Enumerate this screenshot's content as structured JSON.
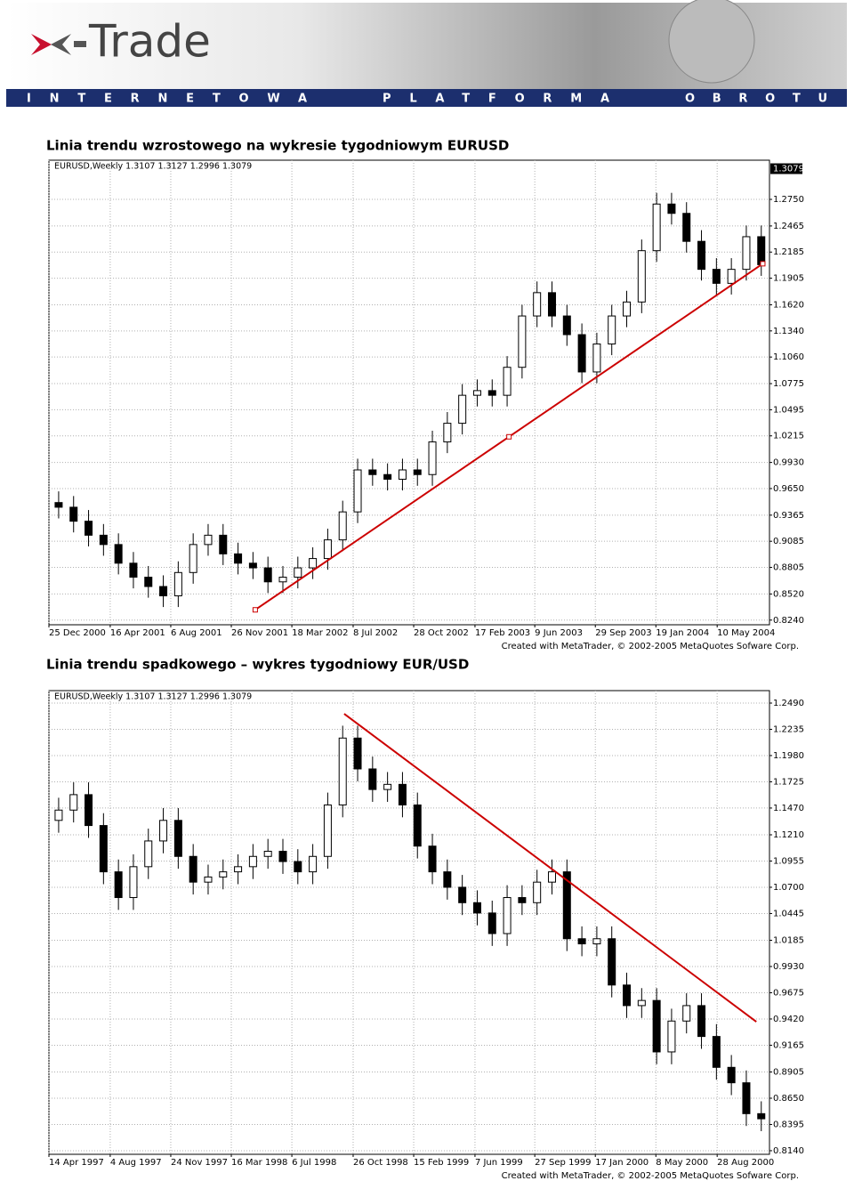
{
  "header": {
    "logo": "Trade",
    "banner": [
      "INTERNETOWA",
      "PLATFORMA",
      "OBROTU"
    ]
  },
  "chart_data": [
    {
      "type": "candlestick",
      "title": "Linia trendu wzrostowego na wykresie tygodniowym EURUSD",
      "subtitle": "EURUSD,Weekly  1.3107 1.3127 1.2996 1.3079",
      "footer": "Created with MetaTrader, © 2002-2005 MetaQuotes Sofware Corp.",
      "color": "#000000",
      "open": [
        0.95,
        0.945,
        0.93,
        0.915,
        0.905,
        0.885,
        0.87,
        0.86,
        0.85,
        0.875,
        0.905,
        0.915,
        0.895,
        0.885,
        0.88,
        0.865,
        0.87,
        0.88,
        0.89,
        0.91,
        0.94,
        0.985,
        0.98,
        0.975,
        0.985,
        0.98,
        1.015,
        1.035,
        1.065,
        1.07,
        1.065,
        1.095,
        1.15,
        1.175,
        1.15,
        1.13,
        1.09,
        1.12,
        1.15,
        1.165,
        1.22,
        1.27,
        1.26,
        1.23,
        1.2,
        1.185,
        1.2,
        1.235
      ],
      "high": [
        0.962,
        0.957,
        0.942,
        0.927,
        0.917,
        0.897,
        0.882,
        0.872,
        0.887,
        0.917,
        0.927,
        0.927,
        0.907,
        0.897,
        0.892,
        0.882,
        0.892,
        0.902,
        0.922,
        0.952,
        0.997,
        0.997,
        0.992,
        0.997,
        0.997,
        1.027,
        1.047,
        1.077,
        1.082,
        1.082,
        1.107,
        1.162,
        1.187,
        1.187,
        1.162,
        1.142,
        1.132,
        1.162,
        1.177,
        1.232,
        1.282,
        1.282,
        1.272,
        1.242,
        1.212,
        1.212,
        1.247,
        1.247
      ],
      "low": [
        0.933,
        0.918,
        0.903,
        0.893,
        0.873,
        0.858,
        0.848,
        0.838,
        0.838,
        0.863,
        0.893,
        0.883,
        0.873,
        0.868,
        0.853,
        0.853,
        0.858,
        0.868,
        0.878,
        0.898,
        0.928,
        0.968,
        0.963,
        0.963,
        0.968,
        0.968,
        1.003,
        1.023,
        1.053,
        1.053,
        1.053,
        1.083,
        1.138,
        1.138,
        1.118,
        1.078,
        1.078,
        1.108,
        1.138,
        1.153,
        1.208,
        1.248,
        1.218,
        1.188,
        1.173,
        1.173,
        1.188,
        1.193
      ],
      "close": [
        0.945,
        0.93,
        0.915,
        0.905,
        0.885,
        0.87,
        0.86,
        0.85,
        0.875,
        0.905,
        0.915,
        0.895,
        0.885,
        0.88,
        0.865,
        0.87,
        0.88,
        0.89,
        0.91,
        0.94,
        0.985,
        0.98,
        0.975,
        0.985,
        0.98,
        1.015,
        1.035,
        1.065,
        1.07,
        1.065,
        1.095,
        1.15,
        1.175,
        1.15,
        1.13,
        1.09,
        1.12,
        1.15,
        1.165,
        1.22,
        1.27,
        1.26,
        1.23,
        1.2,
        1.185,
        1.2,
        1.235,
        1.205
      ],
      "trend_line": {
        "x": [
          13.15,
          47.1
        ],
        "y": [
          0.835,
          1.206
        ],
        "color": "#cc0000"
      },
      "last_price": {
        "value": 1.3079,
        "label": "1.3079"
      },
      "xlim": [
        -0.65,
        47.55
      ],
      "xticks": [
        {
          "value": -0.65,
          "label": "25 Dec 2000"
        },
        {
          "value": 3.45,
          "label": "16 Apr 2001"
        },
        {
          "value": 7.5,
          "label": "6 Aug 2001"
        },
        {
          "value": 11.55,
          "label": "26 Nov 2001"
        },
        {
          "value": 15.6,
          "label": "18 Mar 2002"
        },
        {
          "value": 19.7,
          "label": "8 Jul 2002"
        },
        {
          "value": 23.75,
          "label": "28 Oct 2002"
        },
        {
          "value": 27.85,
          "label": "17 Feb 2003"
        },
        {
          "value": 31.85,
          "label": "9 Jun 2003"
        },
        {
          "value": 35.9,
          "label": "29 Sep 2003"
        },
        {
          "value": 39.95,
          "label": "19 Jan 2004"
        },
        {
          "value": 44.05,
          "label": "10 May 2004"
        }
      ],
      "ylim": [
        0.819,
        1.317
      ],
      "yticks": [
        {
          "value": 0.824,
          "label": "0.8240"
        },
        {
          "value": 0.852,
          "label": "0.8520"
        },
        {
          "value": 0.8805,
          "label": "0.8805"
        },
        {
          "value": 0.9085,
          "label": "0.9085"
        },
        {
          "value": 0.9365,
          "label": "0.9365"
        },
        {
          "value": 0.965,
          "label": "0.9650"
        },
        {
          "value": 0.993,
          "label": "0.9930"
        },
        {
          "value": 1.0215,
          "label": "1.0215"
        },
        {
          "value": 1.0495,
          "label": "1.0495"
        },
        {
          "value": 1.0775,
          "label": "1.0775"
        },
        {
          "value": 1.106,
          "label": "1.1060"
        },
        {
          "value": 1.134,
          "label": "1.1340"
        },
        {
          "value": 1.162,
          "label": "1.1620"
        },
        {
          "value": 1.1905,
          "label": "1.1905"
        },
        {
          "value": 1.2185,
          "label": "1.2185"
        },
        {
          "value": 1.2465,
          "label": "1.2465"
        },
        {
          "value": 1.275,
          "label": "1.2750"
        }
      ],
      "grid": true
    },
    {
      "type": "candlestick",
      "title": "Linia trendu spadkowego – wykres tygodniowy EUR/USD",
      "subtitle": "EURUSD,Weekly  1.3107 1.3127 1.2996 1.3079",
      "footer": "Created with MetaTrader, © 2002-2005 MetaQuotes Sofware Corp.",
      "color": "#000000",
      "open": [
        1.135,
        1.145,
        1.16,
        1.13,
        1.085,
        1.06,
        1.09,
        1.115,
        1.135,
        1.1,
        1.075,
        1.08,
        1.085,
        1.09,
        1.1,
        1.105,
        1.095,
        1.085,
        1.1,
        1.15,
        1.215,
        1.185,
        1.165,
        1.17,
        1.15,
        1.11,
        1.085,
        1.07,
        1.055,
        1.045,
        1.025,
        1.06,
        1.055,
        1.075,
        1.085,
        1.02,
        1.015,
        1.02,
        0.975,
        0.955,
        0.96,
        0.91,
        0.94,
        0.955,
        0.925,
        0.895,
        0.88,
        0.85
      ],
      "high": [
        1.157,
        1.172,
        1.172,
        1.142,
        1.097,
        1.102,
        1.127,
        1.147,
        1.147,
        1.112,
        1.092,
        1.097,
        1.102,
        1.112,
        1.117,
        1.117,
        1.107,
        1.112,
        1.162,
        1.227,
        1.227,
        1.197,
        1.182,
        1.182,
        1.162,
        1.122,
        1.097,
        1.082,
        1.067,
        1.057,
        1.072,
        1.072,
        1.087,
        1.097,
        1.097,
        1.032,
        1.032,
        1.032,
        0.987,
        0.972,
        0.972,
        0.952,
        0.967,
        0.967,
        0.937,
        0.907,
        0.892,
        0.862
      ],
      "low": [
        1.123,
        1.133,
        1.118,
        1.073,
        1.048,
        1.048,
        1.078,
        1.103,
        1.088,
        1.063,
        1.063,
        1.068,
        1.073,
        1.078,
        1.088,
        1.083,
        1.073,
        1.073,
        1.088,
        1.138,
        1.173,
        1.153,
        1.153,
        1.138,
        1.098,
        1.073,
        1.058,
        1.043,
        1.033,
        1.013,
        1.013,
        1.043,
        1.043,
        1.063,
        1.008,
        1.003,
        1.003,
        0.963,
        0.943,
        0.943,
        0.898,
        0.898,
        0.928,
        0.913,
        0.883,
        0.868,
        0.838,
        0.833
      ],
      "close": [
        1.145,
        1.16,
        1.13,
        1.085,
        1.06,
        1.09,
        1.115,
        1.135,
        1.1,
        1.075,
        1.08,
        1.085,
        1.09,
        1.1,
        1.105,
        1.095,
        1.085,
        1.1,
        1.15,
        1.215,
        1.185,
        1.165,
        1.17,
        1.15,
        1.11,
        1.085,
        1.07,
        1.055,
        1.045,
        1.025,
        1.06,
        1.055,
        1.075,
        1.085,
        1.02,
        1.015,
        1.02,
        0.975,
        0.955,
        0.96,
        0.91,
        0.94,
        0.955,
        0.925,
        0.895,
        0.88,
        0.85,
        0.845
      ],
      "trend_line": {
        "x": [
          19.1,
          46.67
        ],
        "y": [
          1.2386,
          0.9393
        ],
        "color": "#cc0000"
      },
      "xlim": [
        -0.65,
        47.55
      ],
      "xticks": [
        {
          "value": -0.65,
          "label": "14 Apr 1997"
        },
        {
          "value": 3.45,
          "label": "4 Aug 1997"
        },
        {
          "value": 7.5,
          "label": "24 Nov 1997"
        },
        {
          "value": 11.55,
          "label": "16 Mar 1998"
        },
        {
          "value": 15.6,
          "label": "6 Jul 1998"
        },
        {
          "value": 19.7,
          "label": "26 Oct 1998"
        },
        {
          "value": 23.75,
          "label": "15 Feb 1999"
        },
        {
          "value": 27.85,
          "label": "7 Jun 1999"
        },
        {
          "value": 31.85,
          "label": "27 Sep 1999"
        },
        {
          "value": 35.9,
          "label": "17 Jan 2000"
        },
        {
          "value": 39.95,
          "label": "8 May 2000"
        },
        {
          "value": 44.05,
          "label": "28 Aug 2000"
        }
      ],
      "ylim": [
        0.8105,
        1.2611
      ],
      "yticks": [
        {
          "value": 1.249,
          "label": "1.2490"
        },
        {
          "value": 1.2235,
          "label": "1.2235"
        },
        {
          "value": 1.198,
          "label": "1.1980"
        },
        {
          "value": 1.1725,
          "label": "1.1725"
        },
        {
          "value": 1.147,
          "label": "1.1470"
        },
        {
          "value": 1.121,
          "label": "1.1210"
        },
        {
          "value": 1.0955,
          "label": "1.0955"
        },
        {
          "value": 1.07,
          "label": "1.0700"
        },
        {
          "value": 1.0445,
          "label": "1.0445"
        },
        {
          "value": 1.0185,
          "label": "1.0185"
        },
        {
          "value": 0.993,
          "label": "0.9930"
        },
        {
          "value": 0.9675,
          "label": "0.9675"
        },
        {
          "value": 0.942,
          "label": "0.9420"
        },
        {
          "value": 0.9165,
          "label": "0.9165"
        },
        {
          "value": 0.8905,
          "label": "0.8905"
        },
        {
          "value": 0.865,
          "label": "0.8650"
        },
        {
          "value": 0.8395,
          "label": "0.8395"
        },
        {
          "value": 0.814,
          "label": "0.8140"
        }
      ],
      "grid": true
    }
  ]
}
